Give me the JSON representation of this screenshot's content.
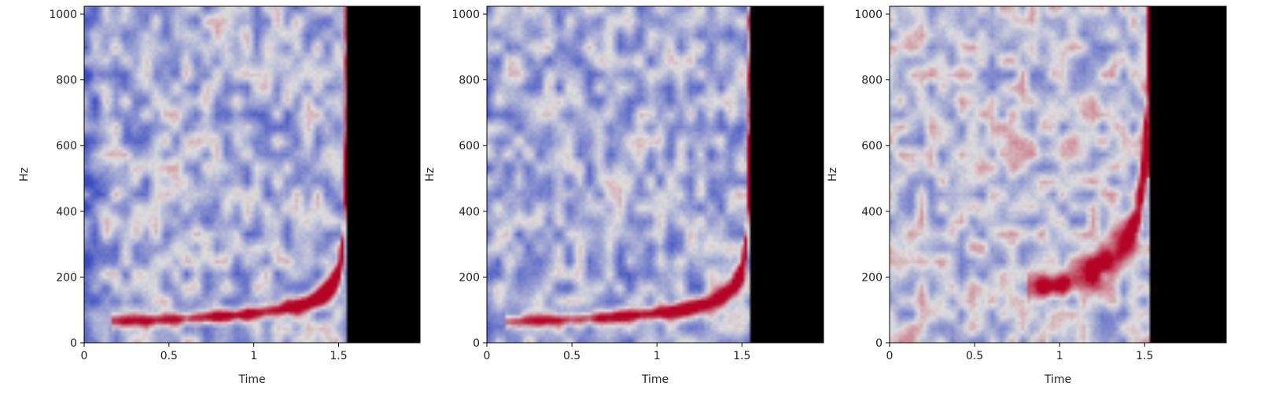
{
  "chart_data": [
    {
      "type": "heatmap",
      "title": "",
      "xlabel": "Time",
      "ylabel": "Hz",
      "xlim": [
        0,
        1.98
      ],
      "ylim": [
        0,
        1024
      ],
      "xticks": [
        0,
        0.5,
        1,
        1.5
      ],
      "xtick_labels": [
        "0",
        "0.5",
        "1",
        "1.5"
      ],
      "yticks": [
        0,
        200,
        400,
        600,
        800,
        1000
      ],
      "ytick_labels": [
        "0",
        "200",
        "400",
        "600",
        "800",
        "1000"
      ],
      "colormap": [
        "#3b4cc0",
        "#dddddd",
        "#b40426"
      ],
      "grid": false,
      "legend": "none",
      "chirp": {
        "start_time": 0.15,
        "start_freq": 60,
        "merge_time": 1.55,
        "shape": "inspiral"
      },
      "background_level": 0.35,
      "edge_fade": "left"
    },
    {
      "type": "heatmap",
      "title": "",
      "xlabel": "Time",
      "ylabel": "Hz",
      "xlim": [
        0,
        1.98
      ],
      "ylim": [
        0,
        1024
      ],
      "xticks": [
        0,
        0.5,
        1,
        1.5
      ],
      "xtick_labels": [
        "0",
        "0.5",
        "1",
        "1.5"
      ],
      "yticks": [
        0,
        200,
        400,
        600,
        800,
        1000
      ],
      "ytick_labels": [
        "0",
        "200",
        "400",
        "600",
        "800",
        "1000"
      ],
      "colormap": [
        "#3b4cc0",
        "#dddddd",
        "#b40426"
      ],
      "grid": false,
      "legend": "none",
      "chirp": {
        "start_time": 0.1,
        "start_freq": 60,
        "merge_time": 1.55,
        "shape": "inspiral"
      },
      "background_level": 0.33,
      "edge_fade": "right"
    },
    {
      "type": "heatmap",
      "title": "",
      "xlabel": "Time",
      "ylabel": "Hz",
      "xlim": [
        0,
        1.98
      ],
      "ylim": [
        0,
        1024
      ],
      "xticks": [
        0,
        0.5,
        1,
        1.5
      ],
      "xtick_labels": [
        "0",
        "0.5",
        "1",
        "1.5"
      ],
      "yticks": [
        0,
        200,
        400,
        600,
        800,
        1000
      ],
      "ytick_labels": [
        "0",
        "200",
        "400",
        "600",
        "800",
        "1000"
      ],
      "colormap": [
        "#3b4cc0",
        "#dddddd",
        "#b40426"
      ],
      "grid": false,
      "legend": "none",
      "chirp": {
        "start_time": 0.8,
        "start_freq": 160,
        "merge_time": 1.53,
        "shape": "inspiral"
      },
      "background_level": 0.42,
      "edge_fade": "none"
    }
  ]
}
